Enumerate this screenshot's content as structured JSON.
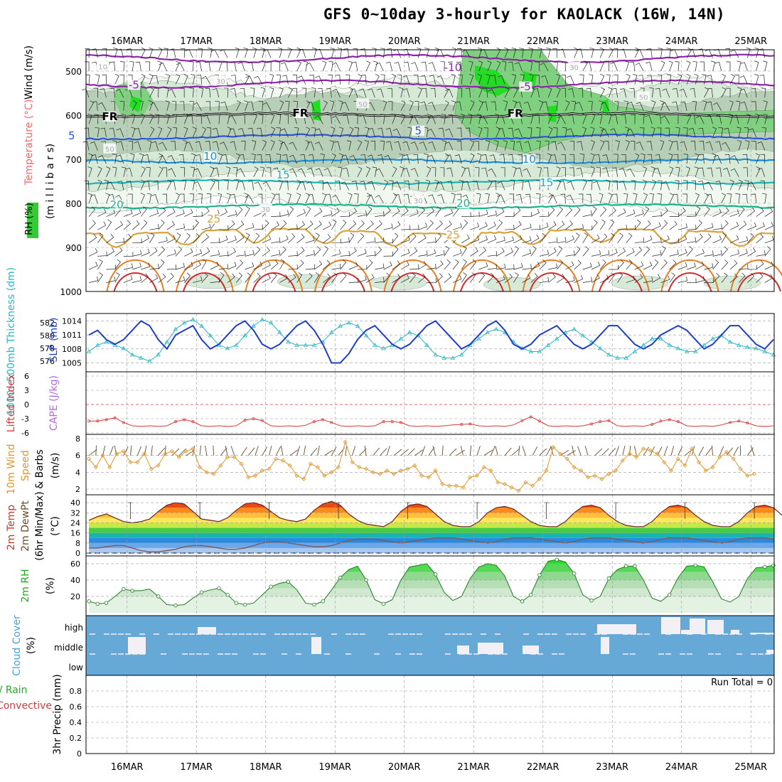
{
  "title": "GFS 0~10day 3-hourly for KAOLACK (16W, 14N)",
  "colors": {
    "temp_contours": [
      "#7a1fa2",
      "#8e24aa",
      "#2b55d6",
      "#1a90d9",
      "#19b3b3",
      "#18b38a",
      "#d9a33a",
      "#e67e22",
      "#d42b2b"
    ],
    "rh_fill": [
      "#f0f8f0",
      "#d7e9d7",
      "#b6cfb6",
      "#75c775",
      "#25d425"
    ],
    "slp": "#1f3fc6",
    "thickness": "#2bb7c5",
    "lifted": "#d63a3a",
    "wind_speed": "#e0962d",
    "rh2m": "#1f7a1f",
    "cloud_bg": "#66a9d6",
    "cloud_bar": "#f3f0f5",
    "grid": "#999999"
  },
  "time_axis": {
    "dates": [
      "16MAR",
      "17MAR",
      "18MAR",
      "19MAR",
      "20MAR",
      "21MAR",
      "22MAR",
      "23MAR",
      "24MAR",
      "25MAR"
    ]
  },
  "panels": {
    "upper": {
      "ylabel_rh": "RH (%)",
      "ylabel_temp": "Temperature (°C)",
      "ylabel_wind": "Wind (m/s)",
      "ylabel_p": "(m i l l i b a r s)",
      "pressure_ticks": [
        500,
        600,
        700,
        800,
        900,
        1000
      ],
      "contour_labels": [
        {
          "text": "-10",
          "t": 5.2,
          "p": 497,
          "c": "#8e24aa"
        },
        {
          "text": "-5",
          "t": 0.6,
          "p": 536,
          "c": "#8e24aa"
        },
        {
          "text": "-5",
          "t": 6.25,
          "p": 540,
          "c": "#8e24aa"
        },
        {
          "text": "FR",
          "t": 0.25,
          "p": 608,
          "c": "#000000"
        },
        {
          "text": "FR",
          "t": 3.0,
          "p": 600,
          "c": "#000000"
        },
        {
          "text": "FR",
          "t": 6.1,
          "p": 601,
          "c": "#000000"
        },
        {
          "text": "5",
          "t": -0.3,
          "p": 652,
          "c": "#2b55d6"
        },
        {
          "text": "5",
          "t": 4.7,
          "p": 640,
          "c": "#2b55d6"
        },
        {
          "text": "10",
          "t": 1.7,
          "p": 698,
          "c": "#1a90d9"
        },
        {
          "text": "10",
          "t": 6.3,
          "p": 705,
          "c": "#1a90d9"
        },
        {
          "text": "15",
          "t": 2.75,
          "p": 740,
          "c": "#19b3b3"
        },
        {
          "text": "15",
          "t": 6.55,
          "p": 758,
          "c": "#19b3b3"
        },
        {
          "text": "20",
          "t": 0.35,
          "p": 808,
          "c": "#18b38a"
        },
        {
          "text": "20",
          "t": 5.35,
          "p": 805,
          "c": "#18b38a"
        },
        {
          "text": "25",
          "t": 1.75,
          "p": 840,
          "c": "#d9a33a"
        },
        {
          "text": "25",
          "t": 5.2,
          "p": 877,
          "c": "#d9a33a"
        },
        {
          "text": "10",
          "t": 0.15,
          "p": 493,
          "c": "#aaaaaa"
        },
        {
          "text": "30",
          "t": 6.95,
          "p": 494,
          "c": "#aaaaaa"
        },
        {
          "text": "30",
          "t": 1.85,
          "p": 526,
          "c": "#aaaaaa"
        },
        {
          "text": "50",
          "t": 3.9,
          "p": 578,
          "c": "#aaaaaa"
        },
        {
          "text": "50",
          "t": 7.95,
          "p": 562,
          "c": "#aaaaaa"
        },
        {
          "text": "50",
          "t": 0.25,
          "p": 680,
          "c": "#aaaaaa"
        },
        {
          "text": "30",
          "t": 2.5,
          "p": 816,
          "c": "#aaaaaa"
        },
        {
          "text": "30",
          "t": 4.7,
          "p": 797,
          "c": "#aaaaaa"
        }
      ]
    },
    "slp": {
      "ylabel_thick": "1000~500mb Thickness (dm)",
      "ylabel_slp": "SLP (mb)",
      "left_ticks": [
        576,
        578,
        580,
        582
      ],
      "right_ticks": [
        1005,
        1008,
        1011,
        1014
      ],
      "slp_values": [
        1011,
        1012,
        1010,
        1009,
        1010,
        1012,
        1014,
        1013,
        1010,
        1008,
        1011,
        1012,
        1013,
        1010,
        1008,
        1009,
        1011,
        1013,
        1014,
        1012,
        1009,
        1008,
        1009,
        1011,
        1013,
        1014,
        1012,
        1009,
        1005,
        1005,
        1007,
        1010,
        1012,
        1013,
        1011,
        1009,
        1008,
        1009,
        1011,
        1013,
        1014,
        1012,
        1010,
        1008,
        1009,
        1011,
        1013,
        1014,
        1012,
        1009,
        1008,
        1009,
        1011,
        1012,
        1013,
        1011,
        1009,
        1008,
        1009,
        1011,
        1013,
        1013,
        1011,
        1009,
        1008,
        1009,
        1011,
        1012,
        1013,
        1012,
        1010,
        1008,
        1009,
        1011,
        1013,
        1013,
        1011,
        1009,
        1008,
        1010,
        1011
      ],
      "thick_values": [
        577.5,
        578.5,
        579,
        578.5,
        578,
        577,
        576.5,
        576,
        577,
        579,
        581,
        582,
        582.5,
        581.5,
        580,
        578.5,
        578,
        578.5,
        580,
        581.5,
        582.5,
        582,
        580.5,
        579,
        578.5,
        578.5,
        578.5,
        579,
        580.5,
        581.5,
        582,
        581.5,
        580,
        578.5,
        578,
        578.5,
        579.5,
        580.5,
        580,
        578.5,
        577,
        576.5,
        576.5,
        577,
        578.5,
        579.5,
        580.5,
        581,
        580.5,
        579,
        578,
        577.5,
        577.5,
        578.5,
        579.5,
        580.5,
        581,
        580,
        579,
        578,
        577,
        576.5,
        576.5,
        577.5,
        578.5,
        579.5,
        579.5,
        578.5,
        578,
        577.5,
        577.5,
        578.5,
        579.5,
        580,
        579,
        578.5,
        578.2,
        578,
        577.5,
        577,
        577
      ]
    },
    "cape": {
      "ylabel_li": "Lifted Index",
      "ylabel_cape": "CAPE (J/kg)",
      "ticks": [
        6,
        3,
        0,
        -3,
        -6
      ],
      "li_values": [
        3.5,
        3.5,
        3.2,
        2.8,
        3.8,
        4.5,
        4.6,
        4.5,
        4.6,
        4.5,
        3.6,
        3.2,
        3.6,
        4.5,
        4.6,
        4.5,
        4.6,
        4.5,
        3.3,
        3.0,
        3.4,
        4.5,
        4.6,
        4.5,
        4.6,
        4.4,
        3.6,
        3.2,
        3.8,
        4.5,
        4.6,
        4.5,
        4.6,
        4.5,
        3.6,
        3.6,
        3.8,
        4.5,
        4.6,
        4.5,
        4.6,
        4.5,
        4.3,
        4.2,
        4.1,
        4.5,
        4.6,
        4.5,
        4.6,
        4.3,
        3.4,
        2.6,
        3.5,
        4.5,
        4.6,
        4.5,
        4.6,
        4.5,
        4.1,
        3.6,
        3.4,
        4.5,
        4.6,
        4.5,
        4.6,
        4.2,
        3.5,
        3.2,
        3.6,
        4.5,
        4.6,
        4.5,
        4.6,
        4.3,
        3.8,
        3.5,
        3.9,
        4.5,
        4.6,
        4.5,
        4.6
      ]
    },
    "wind10m": {
      "ylabel_a": "10m Wind",
      "ylabel_b": "Speed",
      "ylabel_c": "& Barbs",
      "unit": "(m/s)",
      "ticks": [
        2,
        4,
        6,
        8
      ],
      "speed_values": [
        5.6,
        4.6,
        6.0,
        4.6,
        6.2,
        6.5,
        5.2,
        5.2,
        6.2,
        4.4,
        4.8,
        6.2,
        6.5,
        5.8,
        6.5,
        6.8,
        4.6,
        4.0,
        3.8,
        4.8,
        5.8,
        5.8,
        5.0,
        3.4,
        3.6,
        4.2,
        4.4,
        5.6,
        5.4,
        4.8,
        3.6,
        3.2,
        5.0,
        4.6,
        3.6,
        4.0,
        4.6,
        7.6,
        5.2,
        4.6,
        4.4,
        4.0,
        3.8,
        4.2,
        3.8,
        4.2,
        4.4,
        4.8,
        3.6,
        3.4,
        4.2,
        2.6,
        2.4,
        2.4,
        2.2,
        3.4,
        3.6,
        4.6,
        4.2,
        2.8,
        2.6,
        2.2,
        1.8,
        2.8,
        2.4,
        3.2,
        4.2,
        7.0,
        6.2,
        5.6,
        4.6,
        4.2,
        3.4,
        3.6,
        3.2,
        3.8,
        4.2,
        5.4,
        6.2,
        5.8,
        6.8,
        6.6,
        6.2,
        5.2,
        4.2,
        5.6,
        4.8,
        6.8,
        5.2,
        4.2,
        4.6,
        5.8,
        6.4,
        5.6,
        4.4,
        3.6,
        3.8
      ]
    },
    "temp2m": {
      "ylabel_a": "2m Temp",
      "ylabel_b": "2m DewPt",
      "ylabel_c": "(6hr Min/Max)",
      "unit": "(°C)",
      "ticks": [
        0,
        8,
        16,
        24,
        32,
        40
      ],
      "temp_values": [
        26,
        29,
        31,
        28,
        25,
        24,
        25,
        27,
        33,
        38,
        40,
        39,
        33,
        27,
        26,
        25,
        28,
        34,
        39,
        40,
        38,
        33,
        28,
        26,
        25,
        27,
        34,
        39,
        41,
        38,
        31,
        26,
        23,
        22,
        21,
        25,
        33,
        38,
        39,
        37,
        31,
        25,
        22,
        21,
        21,
        25,
        32,
        36,
        37,
        35,
        30,
        25,
        22,
        21,
        21,
        25,
        32,
        37,
        38,
        36,
        30,
        25,
        22,
        21,
        21,
        25,
        32,
        37,
        38,
        36,
        30,
        25,
        22,
        21,
        21,
        25,
        32,
        37,
        38,
        36,
        30,
        26,
        23,
        22,
        21
      ],
      "dew_values": [
        4,
        4,
        5,
        6,
        6,
        4,
        2,
        1,
        1,
        2,
        3,
        5,
        6,
        6,
        5,
        4,
        3,
        3,
        4,
        6,
        8,
        9,
        9,
        8,
        7,
        6,
        5,
        5,
        6,
        8,
        10,
        11,
        11,
        11,
        10,
        9,
        8,
        9,
        10,
        11,
        12,
        12,
        12,
        11,
        10,
        9,
        8,
        9,
        11,
        12,
        12,
        12,
        11,
        10,
        9,
        8,
        9,
        11,
        12,
        12,
        12,
        11,
        10,
        9,
        8,
        9,
        11,
        12,
        12,
        12,
        11,
        10,
        9,
        8,
        9,
        11,
        12,
        12,
        12,
        11,
        10
      ]
    },
    "rh2m": {
      "ylabel": "2m RH",
      "unit": "(%)",
      "ticks": [
        20,
        40,
        60
      ],
      "values": [
        14,
        11,
        12,
        20,
        29,
        27,
        27,
        29,
        20,
        10,
        9,
        10,
        18,
        25,
        28,
        30,
        22,
        12,
        10,
        12,
        22,
        32,
        36,
        38,
        28,
        12,
        10,
        14,
        28,
        43,
        53,
        57,
        40,
        16,
        11,
        16,
        40,
        56,
        58,
        60,
        47,
        25,
        15,
        20,
        42,
        56,
        60,
        58,
        45,
        20,
        14,
        22,
        46,
        63,
        65,
        62,
        48,
        22,
        15,
        20,
        42,
        53,
        57,
        57,
        40,
        18,
        14,
        22,
        43,
        57,
        58,
        56,
        38,
        17,
        13,
        20,
        42,
        55,
        56,
        58,
        48
      ]
    },
    "cloud": {
      "ylabel_a": "Cloud Cover",
      "unit": "(%)",
      "levels": [
        "high",
        "middle",
        "low"
      ]
    },
    "precip": {
      "ylabel_a": "Total / Rain",
      "ylabel_b": "Convective",
      "ylabel_c": "3hr Precip (mm)",
      "ticks": [
        0,
        0.2,
        0.4,
        0.6,
        0.8
      ],
      "run_total": "Run Total = 0"
    }
  },
  "chart_data": {
    "type": "line",
    "title": "GFS 0~10day 3-hourly for KAOLACK (16W, 14N)",
    "categories": [
      "16MAR",
      "17MAR",
      "18MAR",
      "19MAR",
      "20MAR",
      "21MAR",
      "22MAR",
      "23MAR",
      "24MAR",
      "25MAR"
    ],
    "series": [
      {
        "name": "SLP (mb)",
        "values": "panels.slp.slp_values"
      },
      {
        "name": "1000~500mb Thickness (dm)",
        "values": "panels.slp.thick_values"
      },
      {
        "name": "Lifted Index",
        "values": "panels.cape.li_values"
      },
      {
        "name": "10m Wind Speed (m/s)",
        "values": "panels.wind10m.speed_values"
      },
      {
        "name": "2m Temp (°C)",
        "values": "panels.temp2m.temp_values"
      },
      {
        "name": "2m DewPt (°C)",
        "values": "panels.temp2m.dew_values"
      },
      {
        "name": "2m RH (%)",
        "values": "panels.rh2m.values"
      }
    ],
    "ylim_slp": [
      1004,
      1015
    ],
    "ylim_wind": [
      1.5,
      8
    ],
    "ylim_temp": [
      0,
      44
    ],
    "ylim_rh": [
      0,
      66
    ],
    "ylim_precip": [
      0,
      1
    ],
    "run_total": "Run Total = 0",
    "grid": true
  }
}
